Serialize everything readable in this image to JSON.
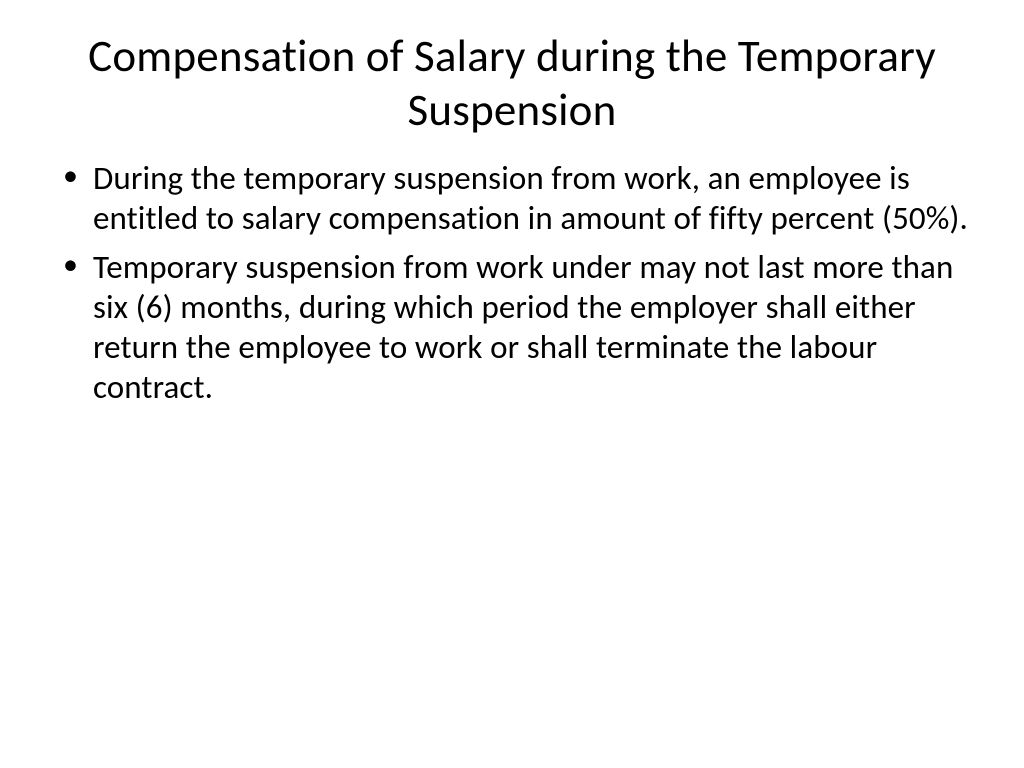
{
  "slide": {
    "title": "Compensation of Salary during the Temporary Suspension",
    "bullets": [
      "During the temporary suspension from work, an employee is entitled to salary compensation in amount of fifty percent (50%).",
      "Temporary suspension from work under may not last more than six (6) months, during which period the employer shall either return the employee to work or shall terminate the labour contract."
    ]
  },
  "styling": {
    "background_color": "#ffffff",
    "text_color": "#000000",
    "title_fontsize": 45,
    "body_fontsize": 33,
    "font_family": "Calibri"
  }
}
